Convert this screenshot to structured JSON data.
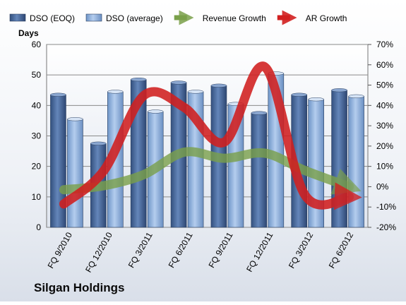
{
  "chart_data": {
    "type": "bar",
    "title": "Silgan Holdings",
    "ylabel": "Days",
    "categories": [
      "FQ 9/2010",
      "FQ 12/2010",
      "FQ 3/2011",
      "FQ 6/2011",
      "FQ 9/2011",
      "FQ 12/2011",
      "FQ 3/2012",
      "FQ 6/2012"
    ],
    "ylim": [
      0,
      60
    ],
    "y_ticks": [
      "0",
      "10",
      "20",
      "30",
      "40",
      "50",
      "60"
    ],
    "y2lim": [
      -20,
      70
    ],
    "y2_ticks": [
      "-20%",
      "-10%",
      "0%",
      "10%",
      "20%",
      "30%",
      "40%",
      "50%",
      "60%",
      "70%"
    ],
    "grid": true,
    "legend_position": "top",
    "series": [
      {
        "name": "DSO (EOQ)",
        "kind": "bar",
        "axis": "left",
        "color": "#4a6896",
        "values": [
          43.5,
          27.5,
          48.5,
          47.5,
          46.5,
          37.5,
          43.5,
          45
        ]
      },
      {
        "name": "DSO (average)",
        "kind": "bar",
        "axis": "left",
        "color": "#8fb3e0",
        "values": [
          35.5,
          44.5,
          38,
          44.5,
          40.5,
          50.5,
          42,
          43
        ]
      },
      {
        "name": "Revenue Growth",
        "kind": "arrow-line",
        "axis": "right",
        "color": "#7aa04a",
        "values": [
          -1.5,
          0.5,
          6,
          17,
          14,
          16.5,
          8,
          0
        ]
      },
      {
        "name": "AR Growth",
        "kind": "arrow-line",
        "axis": "right",
        "color": "#d11f1f",
        "values": [
          -8.5,
          8,
          45,
          39,
          22,
          59,
          -4,
          -5
        ]
      }
    ]
  }
}
